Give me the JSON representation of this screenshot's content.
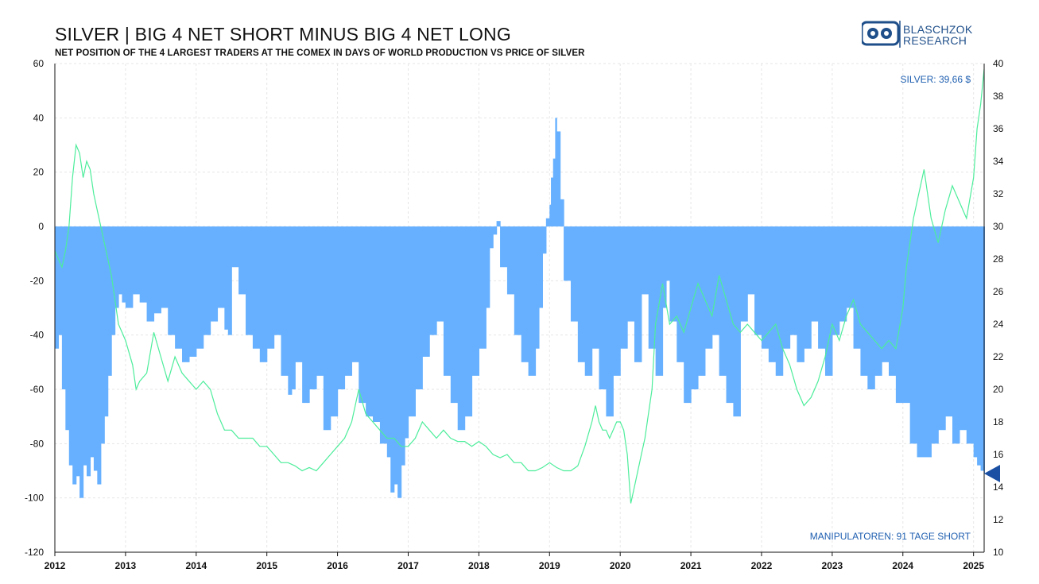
{
  "chart_data": {
    "type": "bar",
    "title": "SILVER | BIG 4 NET SHORT MINUS BIG 4 NET LONG",
    "subtitle": "NET POSITION OF THE 4 LARGEST TRADERS AT THE COMEX IN DAYS OF WORLD PRODUCTION VS PRICE OF SILVER",
    "x_ticks": [
      "2012",
      "2013",
      "2014",
      "2015",
      "2016",
      "2017",
      "2018",
      "2019",
      "2020",
      "2021",
      "2022",
      "2023",
      "2024",
      "2025"
    ],
    "x_range": [
      2012.0,
      2025.15
    ],
    "y_left": {
      "range": [
        -120,
        60
      ],
      "ticks": [
        60,
        40,
        20,
        0,
        -20,
        -40,
        -60,
        -80,
        -100,
        -120
      ]
    },
    "y_right": {
      "range": [
        10,
        40
      ],
      "ticks": [
        40,
        38,
        36,
        34,
        32,
        30,
        28,
        26,
        24,
        22,
        20,
        18,
        16,
        14,
        12,
        10
      ]
    },
    "grid": true,
    "series": [
      {
        "type": "bar",
        "axis": "left",
        "color": "#66b0ff",
        "x": [
          2012.0,
          2012.05,
          2012.1,
          2012.15,
          2012.2,
          2012.25,
          2012.3,
          2012.35,
          2012.4,
          2012.45,
          2012.5,
          2012.55,
          2012.6,
          2012.65,
          2012.7,
          2012.75,
          2012.8,
          2012.85,
          2012.9,
          2012.95,
          2013.0,
          2013.1,
          2013.2,
          2013.3,
          2013.4,
          2013.5,
          2013.6,
          2013.7,
          2013.8,
          2013.9,
          2014.0,
          2014.1,
          2014.2,
          2014.3,
          2014.4,
          2014.45,
          2014.5,
          2014.6,
          2014.7,
          2014.8,
          2014.9,
          2015.0,
          2015.1,
          2015.2,
          2015.3,
          2015.35,
          2015.4,
          2015.5,
          2015.6,
          2015.7,
          2015.8,
          2015.9,
          2016.0,
          2016.1,
          2016.2,
          2016.3,
          2016.4,
          2016.5,
          2016.6,
          2016.7,
          2016.75,
          2016.8,
          2016.85,
          2016.9,
          2016.95,
          2017.0,
          2017.1,
          2017.2,
          2017.3,
          2017.4,
          2017.5,
          2017.6,
          2017.7,
          2017.8,
          2017.9,
          2018.0,
          2018.1,
          2018.15,
          2018.2,
          2018.25,
          2018.3,
          2018.4,
          2018.5,
          2018.6,
          2018.7,
          2018.8,
          2018.85,
          2018.9,
          2018.95,
          2019.0,
          2019.02,
          2019.05,
          2019.08,
          2019.1,
          2019.15,
          2019.2,
          2019.3,
          2019.4,
          2019.5,
          2019.6,
          2019.7,
          2019.8,
          2019.9,
          2020.0,
          2020.1,
          2020.2,
          2020.3,
          2020.4,
          2020.5,
          2020.6,
          2020.65,
          2020.7,
          2020.8,
          2020.9,
          2021.0,
          2021.1,
          2021.2,
          2021.3,
          2021.4,
          2021.5,
          2021.6,
          2021.7,
          2021.8,
          2021.9,
          2022.0,
          2022.1,
          2022.2,
          2022.3,
          2022.4,
          2022.5,
          2022.6,
          2022.7,
          2022.8,
          2022.9,
          2023.0,
          2023.1,
          2023.2,
          2023.3,
          2023.4,
          2023.5,
          2023.6,
          2023.7,
          2023.8,
          2023.9,
          2024.0,
          2024.1,
          2024.2,
          2024.3,
          2024.4,
          2024.5,
          2024.6,
          2024.7,
          2024.8,
          2024.9,
          2025.0,
          2025.05,
          2025.1,
          2025.15
        ],
        "values": [
          -45,
          -40,
          -60,
          -75,
          -88,
          -95,
          -92,
          -100,
          -88,
          -92,
          -85,
          -90,
          -95,
          -80,
          -70,
          -55,
          -40,
          -30,
          -25,
          -28,
          -30,
          -25,
          -28,
          -35,
          -32,
          -30,
          -40,
          -45,
          -50,
          -48,
          -45,
          -40,
          -35,
          -30,
          -38,
          -40,
          -15,
          -25,
          -40,
          -45,
          -50,
          -45,
          -40,
          -55,
          -62,
          -60,
          -50,
          -65,
          -60,
          -55,
          -75,
          -70,
          -60,
          -55,
          -50,
          -65,
          -70,
          -72,
          -80,
          -85,
          -98,
          -95,
          -100,
          -88,
          -78,
          -70,
          -60,
          -48,
          -40,
          -35,
          -55,
          -65,
          -75,
          -70,
          -55,
          -45,
          -30,
          -8,
          -3,
          2,
          -15,
          -25,
          -40,
          -50,
          -55,
          -45,
          -30,
          -10,
          3,
          8,
          18,
          25,
          40,
          35,
          10,
          -20,
          -35,
          -50,
          -55,
          -45,
          -60,
          -70,
          -55,
          -45,
          -35,
          -50,
          -25,
          -45,
          -55,
          -30,
          -20,
          -35,
          -50,
          -65,
          -60,
          -55,
          -45,
          -40,
          -55,
          -65,
          -70,
          -35,
          -25,
          -40,
          -45,
          -50,
          -55,
          -45,
          -40,
          -50,
          -45,
          -35,
          -45,
          -55,
          -40,
          -35,
          -30,
          -45,
          -55,
          -60,
          -55,
          -50,
          -55,
          -65,
          -65,
          -80,
          -85,
          -85,
          -80,
          -75,
          -70,
          -80,
          -75,
          -80,
          -85,
          -88,
          -90,
          -91
        ]
      },
      {
        "type": "line",
        "axis": "right",
        "color": "#4ded9b",
        "x": [
          2012.0,
          2012.05,
          2012.1,
          2012.15,
          2012.2,
          2012.25,
          2012.3,
          2012.35,
          2012.4,
          2012.45,
          2012.5,
          2012.55,
          2012.6,
          2012.65,
          2012.7,
          2012.75,
          2012.8,
          2012.85,
          2012.9,
          2012.95,
          2013.0,
          2013.1,
          2013.15,
          2013.2,
          2013.3,
          2013.4,
          2013.5,
          2013.6,
          2013.7,
          2013.8,
          2013.9,
          2014.0,
          2014.1,
          2014.2,
          2014.3,
          2014.4,
          2014.5,
          2014.6,
          2014.7,
          2014.8,
          2014.9,
          2015.0,
          2015.1,
          2015.2,
          2015.3,
          2015.4,
          2015.5,
          2015.6,
          2015.7,
          2015.8,
          2015.9,
          2016.0,
          2016.1,
          2016.2,
          2016.3,
          2016.4,
          2016.5,
          2016.6,
          2016.7,
          2016.8,
          2016.9,
          2017.0,
          2017.1,
          2017.2,
          2017.3,
          2017.4,
          2017.5,
          2017.6,
          2017.7,
          2017.8,
          2017.9,
          2018.0,
          2018.1,
          2018.2,
          2018.3,
          2018.4,
          2018.5,
          2018.6,
          2018.7,
          2018.8,
          2018.9,
          2019.0,
          2019.1,
          2019.2,
          2019.3,
          2019.4,
          2019.5,
          2019.6,
          2019.65,
          2019.7,
          2019.75,
          2019.8,
          2019.85,
          2019.9,
          2019.95,
          2020.0,
          2020.05,
          2020.1,
          2020.15,
          2020.2,
          2020.25,
          2020.3,
          2020.35,
          2020.4,
          2020.45,
          2020.5,
          2020.6,
          2020.7,
          2020.8,
          2020.9,
          2021.0,
          2021.1,
          2021.2,
          2021.3,
          2021.4,
          2021.5,
          2021.6,
          2021.7,
          2021.8,
          2021.9,
          2022.0,
          2022.1,
          2022.2,
          2022.3,
          2022.4,
          2022.5,
          2022.6,
          2022.7,
          2022.8,
          2022.9,
          2023.0,
          2023.1,
          2023.2,
          2023.3,
          2023.4,
          2023.5,
          2023.6,
          2023.7,
          2023.8,
          2023.9,
          2024.0,
          2024.05,
          2024.1,
          2024.15,
          2024.2,
          2024.3,
          2024.4,
          2024.5,
          2024.6,
          2024.7,
          2024.8,
          2024.9,
          2025.0,
          2025.05,
          2025.1,
          2025.15
        ],
        "values": [
          28.5,
          28.0,
          27.5,
          28.5,
          30.0,
          33.0,
          35.0,
          34.5,
          33.0,
          34.0,
          33.5,
          32.0,
          31.0,
          30.0,
          29.0,
          28.0,
          27.0,
          25.5,
          24.0,
          23.5,
          23.0,
          21.5,
          20.0,
          20.5,
          21.0,
          23.5,
          22.0,
          20.5,
          22.0,
          21.0,
          20.5,
          20.0,
          20.5,
          20.0,
          18.5,
          17.5,
          17.5,
          17.0,
          17.0,
          17.0,
          16.5,
          16.5,
          16.0,
          15.5,
          15.5,
          15.3,
          15.0,
          15.2,
          15.0,
          15.5,
          16.0,
          16.5,
          17.0,
          18.0,
          20.0,
          18.5,
          18.0,
          17.5,
          17.0,
          17.0,
          16.5,
          16.5,
          17.0,
          18.0,
          17.5,
          17.0,
          17.5,
          17.0,
          16.8,
          16.8,
          16.5,
          16.8,
          16.5,
          16.0,
          15.8,
          16.0,
          15.5,
          15.5,
          15.0,
          15.0,
          15.2,
          15.5,
          15.2,
          15.0,
          15.0,
          15.3,
          16.5,
          18.0,
          19.0,
          18.0,
          17.5,
          17.5,
          17.0,
          17.5,
          18.0,
          18.0,
          17.5,
          16.0,
          13.0,
          14.0,
          15.0,
          16.0,
          17.0,
          18.5,
          20.0,
          24.0,
          26.5,
          24.0,
          24.5,
          23.5,
          25.0,
          26.5,
          25.5,
          24.5,
          27.0,
          25.5,
          24.0,
          23.5,
          24.0,
          23.5,
          23.0,
          23.5,
          24.0,
          22.5,
          21.5,
          20.0,
          19.0,
          19.5,
          20.5,
          22.0,
          24.0,
          23.0,
          24.5,
          25.5,
          24.0,
          23.5,
          23.0,
          22.5,
          23.0,
          22.5,
          25.0,
          27.5,
          29.0,
          30.5,
          31.5,
          33.5,
          30.5,
          29.0,
          31.0,
          32.5,
          31.5,
          30.5,
          33.0,
          36.0,
          37.5,
          39.66
        ]
      }
    ],
    "annotations": {
      "silver_price": "SILVER: 39,66 $",
      "manipulatoren": "MANIPULATOREN: 91 TAGE SHORT"
    }
  },
  "logo": {
    "line1": "BLASCHZOK",
    "line2": "RESEARCH"
  },
  "colors": {
    "bars": "#66b0ff",
    "line": "#4ded9b",
    "accent": "#1f5fb0",
    "marker": "#1a4fa3"
  }
}
